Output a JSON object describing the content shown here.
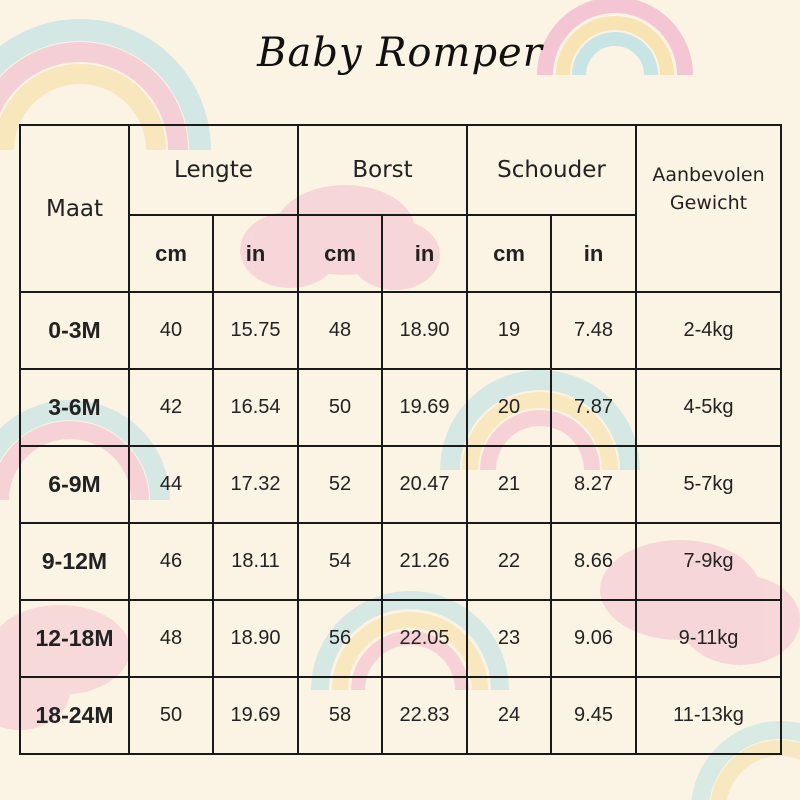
{
  "title": "Baby Romper",
  "headers": {
    "maat": "Maat",
    "lengte": "Lengte",
    "borst": "Borst",
    "schouder": "Schouder",
    "gewicht_line1": "Aanbevolen",
    "gewicht_line2": "Gewicht",
    "cm": "cm",
    "in": "in"
  },
  "rows": [
    {
      "size": "0-3M",
      "lengte_cm": "40",
      "lengte_in": "15.75",
      "borst_cm": "48",
      "borst_in": "18.90",
      "schouder_cm": "19",
      "schouder_in": "7.48",
      "gewicht": "2-4kg"
    },
    {
      "size": "3-6M",
      "lengte_cm": "42",
      "lengte_in": "16.54",
      "borst_cm": "50",
      "borst_in": "19.69",
      "schouder_cm": "20",
      "schouder_in": "7.87",
      "gewicht": "4-5kg"
    },
    {
      "size": "6-9M",
      "lengte_cm": "44",
      "lengte_in": "17.32",
      "borst_cm": "52",
      "borst_in": "20.47",
      "schouder_cm": "21",
      "schouder_in": "8.27",
      "gewicht": "5-7kg"
    },
    {
      "size": "9-12M",
      "lengte_cm": "46",
      "lengte_in": "18.11",
      "borst_cm": "54",
      "borst_in": "21.26",
      "schouder_cm": "22",
      "schouder_in": "8.66",
      "gewicht": "7-9kg"
    },
    {
      "size": "12-18M",
      "lengte_cm": "48",
      "lengte_in": "18.90",
      "borst_cm": "56",
      "borst_in": "22.05",
      "schouder_cm": "23",
      "schouder_in": "9.06",
      "gewicht": "9-11kg"
    },
    {
      "size": "18-24M",
      "lengte_cm": "50",
      "lengte_in": "19.69",
      "borst_cm": "58",
      "borst_in": "22.83",
      "schouder_cm": "24",
      "schouder_in": "9.45",
      "gewicht": "11-13kg"
    }
  ],
  "colors": {
    "background": "#fbf3e3",
    "rainbow_pink": "#f2b8cf",
    "rainbow_yellow": "#f7dfa3",
    "rainbow_blue": "#b9e0e6",
    "cloud_pink": "#f4c0d2"
  }
}
